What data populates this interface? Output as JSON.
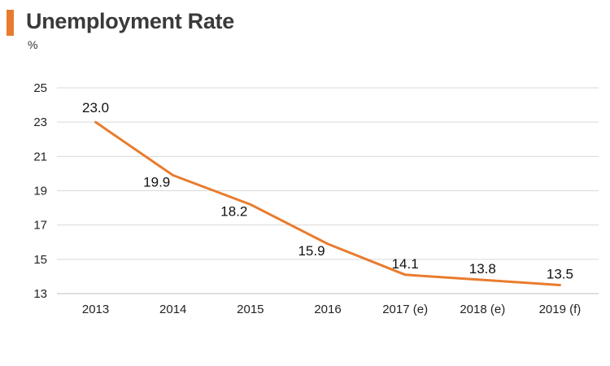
{
  "header": {
    "title": "Unemployment Rate",
    "unit": "%"
  },
  "chart_data": {
    "type": "line",
    "title": "Unemployment Rate",
    "ylabel": "%",
    "xlabel": "",
    "categories": [
      "2013",
      "2014",
      "2015",
      "2016",
      "2017 (e)",
      "2018 (e)",
      "2019 (f)"
    ],
    "series": [
      {
        "values": [
          23.0,
          19.9,
          18.2,
          15.9,
          14.1,
          13.8,
          13.5
        ],
        "labels": [
          "23.0",
          "19.9",
          "18.2",
          "15.9",
          "14.1",
          "13.8",
          "13.5"
        ],
        "color": "#e87c2e"
      }
    ],
    "ylim": [
      13,
      25
    ],
    "yticks": [
      13,
      15,
      17,
      19,
      21,
      23,
      25
    ],
    "grid": true,
    "legend": "none",
    "gridline_color": "#d9d9d9",
    "axis_color": "#bfbfbf"
  }
}
